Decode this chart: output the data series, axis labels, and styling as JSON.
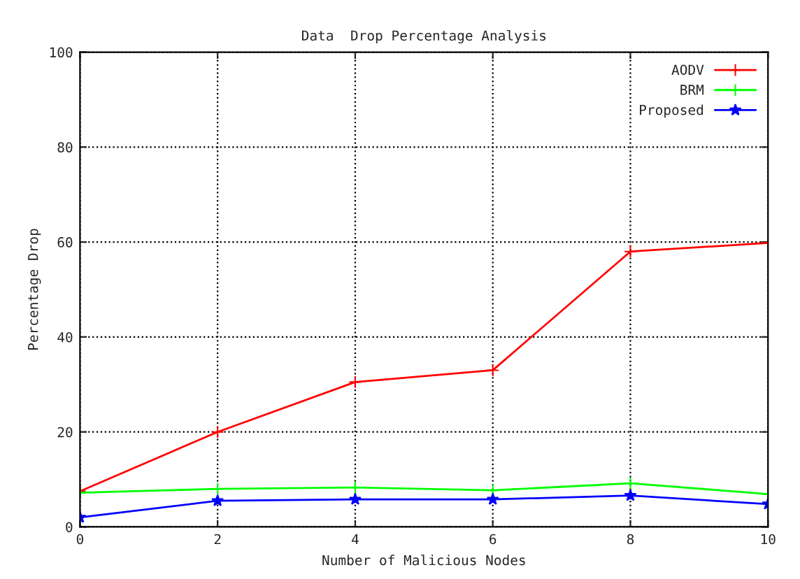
{
  "chart_data": {
    "type": "line",
    "title": "Data  Drop Percentage Analysis",
    "xlabel": "Number of Malicious Nodes",
    "ylabel": "Percentage Drop",
    "x": [
      0,
      2,
      4,
      6,
      8,
      10
    ],
    "series": [
      {
        "name": "AODV",
        "color": "#ff0000",
        "marker": "cross",
        "values": [
          7.5,
          20,
          30.5,
          33,
          58,
          59.8
        ]
      },
      {
        "name": "BRM",
        "color": "#00ff00",
        "marker": "cross",
        "values": [
          7.2,
          8,
          8.3,
          7.7,
          9.2,
          6.9
        ]
      },
      {
        "name": "Proposed",
        "color": "#0000ff",
        "marker": "star",
        "values": [
          2,
          5.5,
          5.8,
          5.8,
          6.6,
          4.8
        ]
      }
    ],
    "xlim": [
      0,
      10
    ],
    "xticks": [
      0,
      2,
      4,
      6,
      8,
      10
    ],
    "ylim": [
      0,
      100
    ],
    "yticks": [
      0,
      20,
      40,
      60,
      80,
      100
    ],
    "grid": true,
    "legend": "top right",
    "line_style": "solid"
  }
}
